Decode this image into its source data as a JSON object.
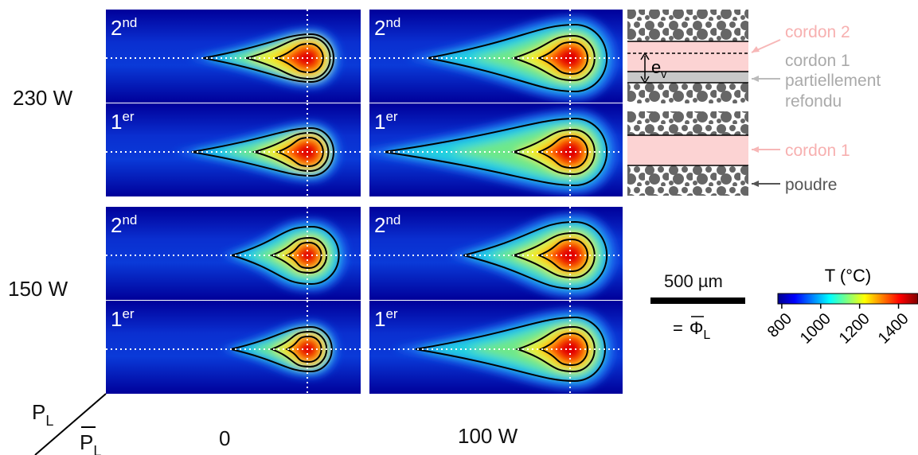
{
  "rows": [
    {
      "label": "230 W"
    },
    {
      "label": "150 W"
    }
  ],
  "columns": [
    {
      "label": "0"
    },
    {
      "label": "100 W"
    }
  ],
  "panel_labels": {
    "second": {
      "base": "2",
      "sup": "nd"
    },
    "first": {
      "base": "1",
      "sup": "er"
    }
  },
  "axis_labels": {
    "top": {
      "base": "P",
      "sub": "L"
    },
    "bottom": {
      "base": "P",
      "sub": "L"
    }
  },
  "schematic": {
    "cordon2": "cordon 2",
    "cordon1_top": "cordon 1",
    "partial1": "partiellement",
    "partial2": "refondu",
    "cordon1": "cordon 1",
    "powder": "poudre",
    "ev": {
      "base": "e",
      "sub": "v"
    }
  },
  "scale_bar": {
    "label": "500 µm",
    "equals": "=",
    "symbol": {
      "base": "Φ",
      "sub": "L"
    }
  },
  "colorbar": {
    "title": "T (°C)",
    "range": [
      780,
      1500
    ],
    "ticks": [
      800,
      1000,
      1200,
      1400
    ]
  }
}
